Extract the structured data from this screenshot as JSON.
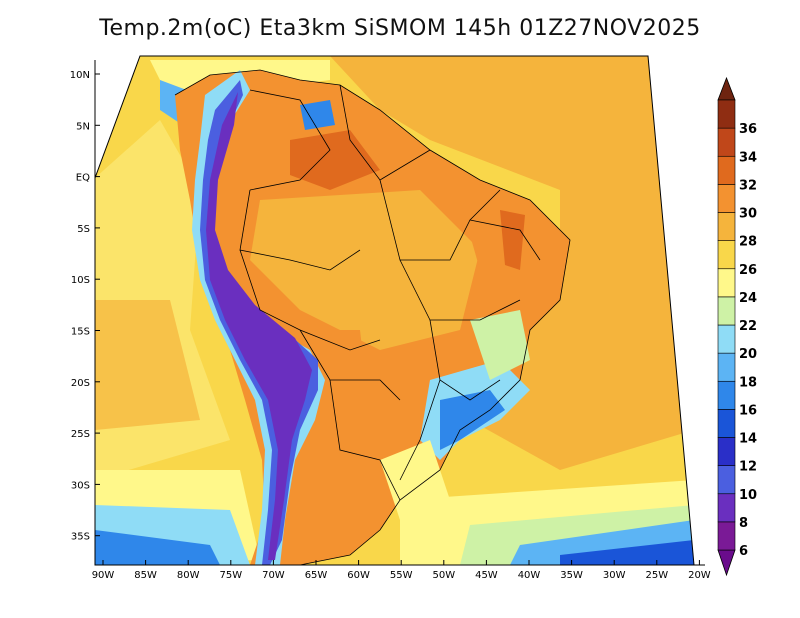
{
  "title": "Temp.2m(oC) Eta3km SiSMOM 145h 01Z27NOV2025",
  "map": {
    "lon_labels": [
      "90W",
      "85W",
      "80W",
      "75W",
      "70W",
      "65W",
      "60W",
      "55W",
      "50W",
      "45W",
      "40W",
      "35W",
      "30W",
      "25W",
      "20W"
    ],
    "lat_labels": [
      "10N",
      "5N",
      "EQ",
      "5S",
      "10S",
      "15S",
      "20S",
      "25S",
      "30S",
      "35S"
    ],
    "lon_range": [
      -91,
      -20
    ],
    "lat_range": [
      -38,
      11
    ]
  },
  "colorbar": {
    "labels": [
      "6",
      "8",
      "10",
      "12",
      "14",
      "16",
      "18",
      "20",
      "22",
      "24",
      "26",
      "28",
      "30",
      "32",
      "34",
      "36"
    ],
    "colors": [
      "#7a1a96",
      "#6a2fbf",
      "#4b5fe0",
      "#2a2fc8",
      "#1a55d8",
      "#2f87ea",
      "#5cb4f4",
      "#8fdcf6",
      "#cef2a6",
      "#fff88a",
      "#f9d74a",
      "#f5b43c",
      "#f39230",
      "#e06a1e",
      "#c0471a",
      "#8f2d12"
    ],
    "low_end_color": "#6a0c8c",
    "high_end_color": "#6e2410"
  },
  "colors": {
    "ocean_warm": "#f5b43c",
    "ocean_mild": "#f9d74a",
    "land_hot": "#f39230",
    "andes_cold": "#6a2fbf"
  }
}
